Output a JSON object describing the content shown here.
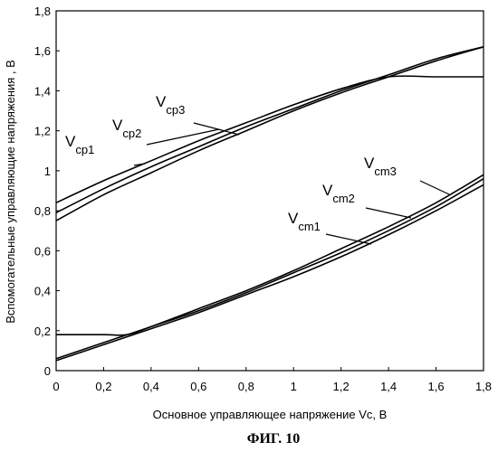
{
  "figure_caption": "ФИГ. 10",
  "chart_data": {
    "type": "line",
    "xlabel": "Основное управляющее напряжение Vc, В",
    "ylabel": "Вспомогательные управляющие напряжения , В",
    "xlim": [
      0,
      1.8
    ],
    "ylim": [
      0,
      1.8
    ],
    "grid": false,
    "x_ticks": [
      0,
      0.2,
      0.4,
      0.6,
      0.8,
      1,
      1.2,
      1.4,
      1.6,
      1.8
    ],
    "y_ticks": [
      0,
      0.2,
      0.4,
      0.6,
      0.8,
      1,
      1.2,
      1.4,
      1.6,
      1.8
    ],
    "x_tick_labels": [
      "0",
      "0,2",
      "0,4",
      "0,6",
      "0,8",
      "1",
      "1,2",
      "1,4",
      "1,6",
      "1,8"
    ],
    "y_tick_labels": [
      "0",
      "0,2",
      "0,4",
      "0,6",
      "0,8",
      "1",
      "1,2",
      "1,4",
      "1,6",
      "1,8"
    ],
    "series": [
      {
        "name": "Vcp1",
        "label_main": "V",
        "label_sub": "cp1",
        "x": [
          0,
          0.2,
          0.4,
          0.6,
          0.8,
          1.0,
          1.2,
          1.4,
          1.6,
          1.8
        ],
        "y": [
          0.75,
          0.88,
          0.99,
          1.1,
          1.2,
          1.3,
          1.39,
          1.47,
          1.55,
          1.62
        ]
      },
      {
        "name": "Vcp2",
        "label_main": "V",
        "label_sub": "cp2",
        "x": [
          0,
          0.2,
          0.4,
          0.6,
          0.8,
          1.0,
          1.2,
          1.4,
          1.6,
          1.8
        ],
        "y": [
          0.79,
          0.91,
          1.02,
          1.12,
          1.22,
          1.31,
          1.4,
          1.48,
          1.56,
          1.62
        ]
      },
      {
        "name": "Vcp3",
        "label_main": "V",
        "label_sub": "cp3",
        "x": [
          0,
          0.2,
          0.4,
          0.6,
          0.8,
          1.0,
          1.2,
          1.4,
          1.6,
          1.8
        ],
        "y": [
          0.84,
          0.95,
          1.05,
          1.15,
          1.24,
          1.33,
          1.41,
          1.47,
          1.47,
          1.47
        ]
      },
      {
        "name": "Vcm1",
        "label_main": "V",
        "label_sub": "cm1",
        "x": [
          0,
          0.2,
          0.4,
          0.6,
          0.8,
          1.0,
          1.2,
          1.4,
          1.6,
          1.8
        ],
        "y": [
          0.05,
          0.13,
          0.21,
          0.29,
          0.38,
          0.47,
          0.57,
          0.68,
          0.8,
          0.93
        ]
      },
      {
        "name": "Vcm2",
        "label_main": "V",
        "label_sub": "cm2",
        "x": [
          0,
          0.2,
          0.4,
          0.6,
          0.8,
          1.0,
          1.2,
          1.4,
          1.6,
          1.8
        ],
        "y": [
          0.06,
          0.14,
          0.22,
          0.3,
          0.39,
          0.49,
          0.59,
          0.7,
          0.82,
          0.96
        ]
      },
      {
        "name": "Vcm3",
        "label_main": "V",
        "label_sub": "cm3",
        "x": [
          0,
          0.2,
          0.3,
          0.4,
          0.6,
          0.8,
          1.0,
          1.2,
          1.4,
          1.6,
          1.8
        ],
        "y": [
          0.18,
          0.18,
          0.18,
          0.22,
          0.31,
          0.4,
          0.5,
          0.61,
          0.72,
          0.84,
          0.98
        ]
      }
    ]
  }
}
